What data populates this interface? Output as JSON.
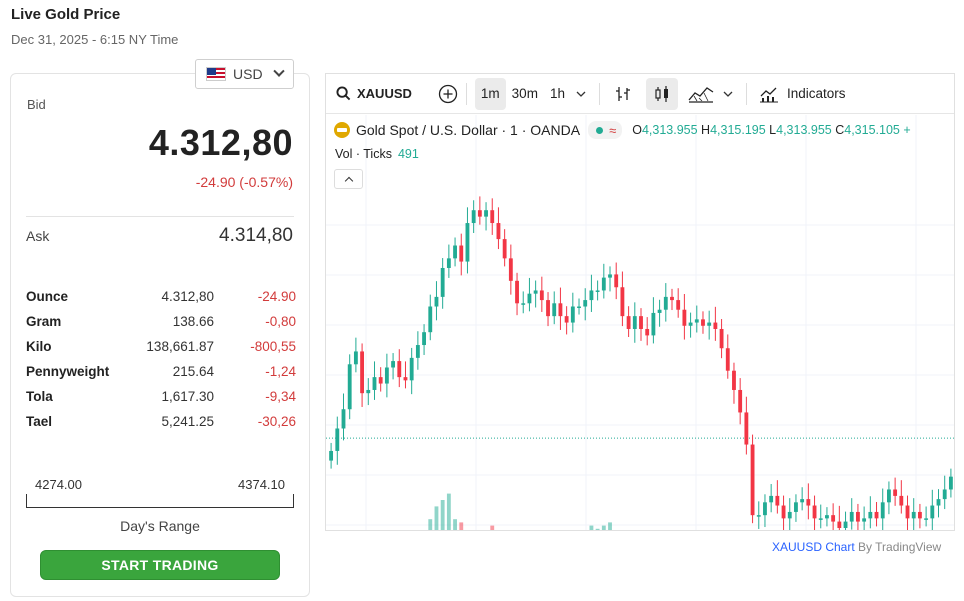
{
  "page": {
    "title": "Live Gold Price",
    "subtitle": "Dec 31, 2025 - 6:15 NY Time"
  },
  "currency": {
    "selected": "USD",
    "flag": "us-flag-icon"
  },
  "quote": {
    "bid_label": "Bid",
    "bid": "4.312,80",
    "change": "-24.90 (-0.57%)",
    "ask_label": "Ask",
    "ask": "4.314,80"
  },
  "units": [
    {
      "name": "Ounce",
      "price": "4.312,80",
      "change": "-24.90"
    },
    {
      "name": "Gram",
      "price": "138.66",
      "change": "-0,80"
    },
    {
      "name": "Kilo",
      "price": "138,661.87",
      "change": "-800,55"
    },
    {
      "name": "Pennyweight",
      "price": "215.64",
      "change": "-1,24"
    },
    {
      "name": "Tola",
      "price": "1,617.30",
      "change": "-9,34"
    },
    {
      "name": "Tael",
      "price": "5,241.25",
      "change": "-30,26"
    }
  ],
  "range": {
    "low": "4274.00",
    "high": "4374.10",
    "label": "Day's Range"
  },
  "cta": {
    "label": "START TRADING"
  },
  "chart_widget": {
    "symbol": "XAUUSD",
    "intervals": [
      "1m",
      "30m",
      "1h"
    ],
    "active_interval": "1m",
    "indicators_label": "Indicators",
    "legend": {
      "title": "Gold Spot / U.S. Dollar · 1 · OANDA",
      "o_label": "O",
      "o": "4,313.955",
      "h_label": "H",
      "h": "4,315.195",
      "l_label": "L",
      "l": "4,313.955",
      "c_label": "C",
      "c": "4,315.105",
      "more": "+"
    },
    "volume": {
      "label": "Vol · Ticks",
      "value": "491"
    },
    "attribution_link": "XAUUSD Chart",
    "attribution_by": "By TradingView",
    "colors": {
      "up": "#22ab94",
      "down": "#f23645",
      "ref_line": "#22ab94"
    }
  },
  "chart_data": {
    "type": "candlestick",
    "price_range_visible": [
      0,
      1
    ],
    "candles_close_normalized": [
      0.24,
      0.31,
      0.37,
      0.51,
      0.55,
      0.42,
      0.43,
      0.47,
      0.45,
      0.5,
      0.52,
      0.47,
      0.46,
      0.53,
      0.57,
      0.61,
      0.69,
      0.72,
      0.81,
      0.84,
      0.88,
      0.83,
      0.95,
      0.99,
      0.97,
      0.99,
      0.95,
      0.9,
      0.84,
      0.77,
      0.7,
      0.7,
      0.73,
      0.74,
      0.71,
      0.66,
      0.7,
      0.66,
      0.64,
      0.69,
      0.69,
      0.71,
      0.74,
      0.74,
      0.78,
      0.79,
      0.75,
      0.66,
      0.62,
      0.66,
      0.62,
      0.6,
      0.67,
      0.68,
      0.72,
      0.71,
      0.68,
      0.63,
      0.64,
      0.65,
      0.63,
      0.64,
      0.62,
      0.56,
      0.49,
      0.43,
      0.36,
      0.26,
      0.04,
      0.04,
      0.08,
      0.1,
      0.07,
      0.03,
      0.05,
      0.08,
      0.09,
      0.07,
      0.03,
      0.03,
      0.04,
      0.02,
      0.0,
      0.02,
      0.05,
      0.02,
      0.03,
      0.05,
      0.03,
      0.08,
      0.12,
      0.1,
      0.07,
      0.03,
      0.05,
      0.03,
      0.03,
      0.07,
      0.09,
      0.12,
      0.16
    ],
    "volume_bars": [
      0,
      0,
      0,
      0,
      0,
      0,
      0,
      0,
      0,
      0,
      0,
      0,
      0,
      0,
      0,
      0,
      4,
      8,
      10,
      12,
      4,
      3,
      0,
      0,
      0,
      0,
      2,
      0,
      0,
      0,
      0,
      0,
      0,
      0,
      0,
      0,
      0,
      0,
      0,
      0,
      0,
      0,
      2,
      1,
      2,
      3,
      0,
      0,
      0,
      0,
      0,
      0,
      0,
      0,
      0,
      0,
      0,
      0,
      0,
      0,
      0,
      0,
      0,
      0,
      0,
      0,
      0,
      0,
      0,
      0,
      0,
      0,
      0,
      0,
      0,
      0,
      0,
      0,
      0,
      0,
      0,
      0,
      0,
      0,
      0,
      0,
      0,
      0,
      0,
      0,
      0,
      0,
      0,
      0,
      0,
      0,
      0,
      0,
      0,
      0,
      0
    ],
    "reference_line_normalized": 0.28,
    "grid": true
  }
}
